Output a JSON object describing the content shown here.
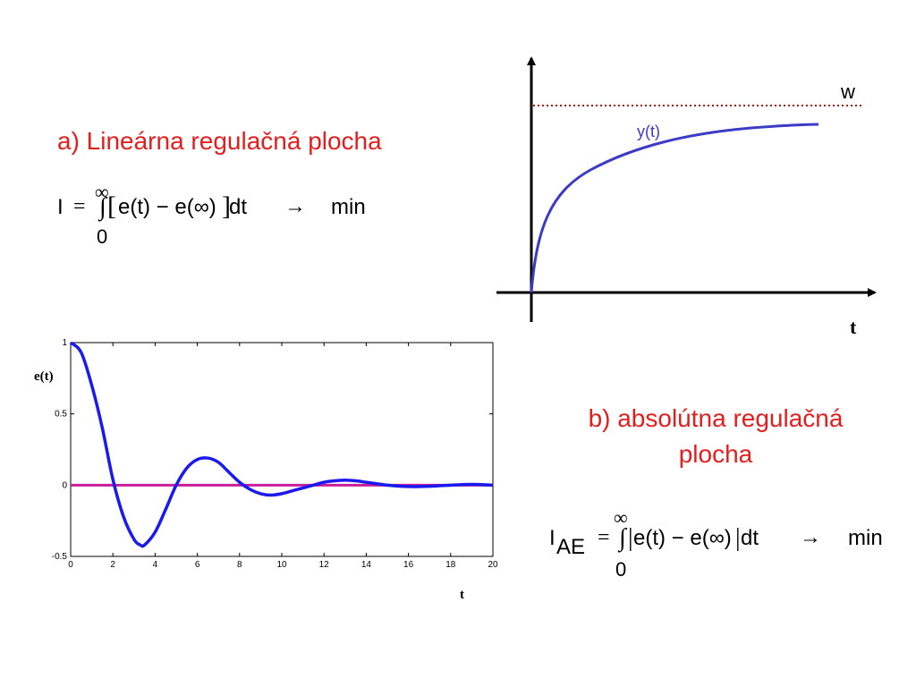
{
  "section_a": {
    "heading": "a) Lineárna regulačná plocha",
    "formula": {
      "lhs": "I",
      "equals": "=",
      "integral": "∫",
      "upper_limit": "∞",
      "lower_limit": "0",
      "lbracket": "[",
      "body_left": "e(t) − e(∞)",
      "rbracket": "]",
      "dt": "dt",
      "arrow": "→",
      "target": "min"
    }
  },
  "section_b": {
    "heading_line1": "b) absolútna regulačná",
    "heading_line2": "plocha",
    "formula": {
      "lhs": "I",
      "lhs_sub": "AE",
      "equals": "=",
      "integral": "∫",
      "upper_limit": "∞",
      "lower_limit": "0",
      "lbar": "|",
      "body": "e(t) − e(∞)",
      "rbar": "|",
      "dt": "dt",
      "arrow": "→",
      "target": "min"
    }
  },
  "step_sketch": {
    "setpoint_label": "w",
    "curve_label": "y(t)",
    "x_axis_label": "t",
    "colors": {
      "curve": "#3b3bc8",
      "setpoint": "#b01818",
      "axes": "#000000"
    }
  },
  "error_plot": {
    "y_axis_label": "e(t)",
    "x_axis_label": "t",
    "colors": {
      "curve": "#1a1aee",
      "zero_line": "#c81e9c"
    }
  },
  "chart_data": {
    "type": "line",
    "title": "",
    "xlabel": "t",
    "ylabel": "e(t)",
    "xlim": [
      0,
      20
    ],
    "ylim": [
      -0.5,
      1
    ],
    "x_ticks": [
      "0",
      "2",
      "4",
      "6",
      "8",
      "10",
      "12",
      "14",
      "16",
      "18",
      "20"
    ],
    "y_ticks": [
      "-0.5",
      "0",
      "0.5",
      "1"
    ],
    "grid": false,
    "series": [
      {
        "x": [
          0,
          0.5,
          1,
          1.5,
          2,
          2.5,
          3,
          3.3,
          3.5,
          4,
          4.5,
          5,
          5.5,
          6,
          6.5,
          7,
          7.5,
          8,
          8.5,
          9,
          9.5,
          10,
          10.5,
          11,
          11.5,
          12,
          12.5,
          13,
          13.5,
          14,
          14.5,
          15,
          16,
          17,
          18,
          19,
          20
        ],
        "y": [
          1.0,
          0.93,
          0.7,
          0.4,
          0.04,
          -0.22,
          -0.38,
          -0.42,
          -0.42,
          -0.33,
          -0.17,
          0.0,
          0.12,
          0.18,
          0.19,
          0.16,
          0.09,
          0.02,
          -0.03,
          -0.06,
          -0.07,
          -0.06,
          -0.04,
          -0.02,
          0.0,
          0.02,
          0.03,
          0.035,
          0.03,
          0.02,
          0.01,
          0.0,
          -0.01,
          -0.008,
          0.0,
          0.005,
          0.0
        ]
      },
      {
        "x": [
          0,
          20
        ],
        "y": [
          0,
          0
        ]
      }
    ]
  }
}
